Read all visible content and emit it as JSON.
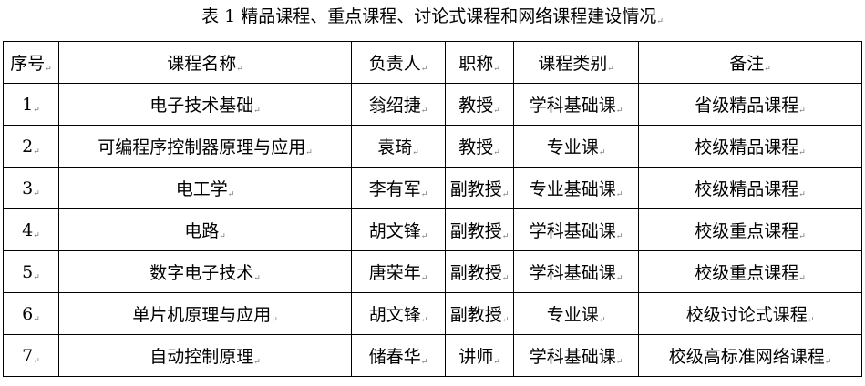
{
  "title": "表 1  精品课程、重点课程、讨论式课程和网络课程建设情况",
  "table": {
    "headers": [
      "序号",
      "课程名称",
      "负责人",
      "职称",
      "课程类别",
      "备注"
    ],
    "rows": [
      [
        "1",
        "电子技术基础",
        "翁绍捷",
        "教授",
        "学科基础课",
        "省级精品课程"
      ],
      [
        "2",
        "可编程序控制器原理与应用",
        "袁琦",
        "教授",
        "专业课",
        "校级精品课程"
      ],
      [
        "3",
        "电工学",
        "李有军",
        "副教授",
        "专业基础课",
        "校级精品课程"
      ],
      [
        "4",
        "电路",
        "胡文锋",
        "副教授",
        "学科基础课",
        "校级重点课程"
      ],
      [
        "5",
        "数字电子技术",
        "唐荣年",
        "副教授",
        "学科基础课",
        "校级重点课程"
      ],
      [
        "6",
        "单片机原理与应用",
        "胡文锋",
        "副教授",
        "专业课",
        "校级讨论式课程"
      ],
      [
        "7",
        "自动控制原理",
        "储春华",
        "讲师",
        "学科基础课",
        "校级高标准网络课程"
      ]
    ]
  }
}
